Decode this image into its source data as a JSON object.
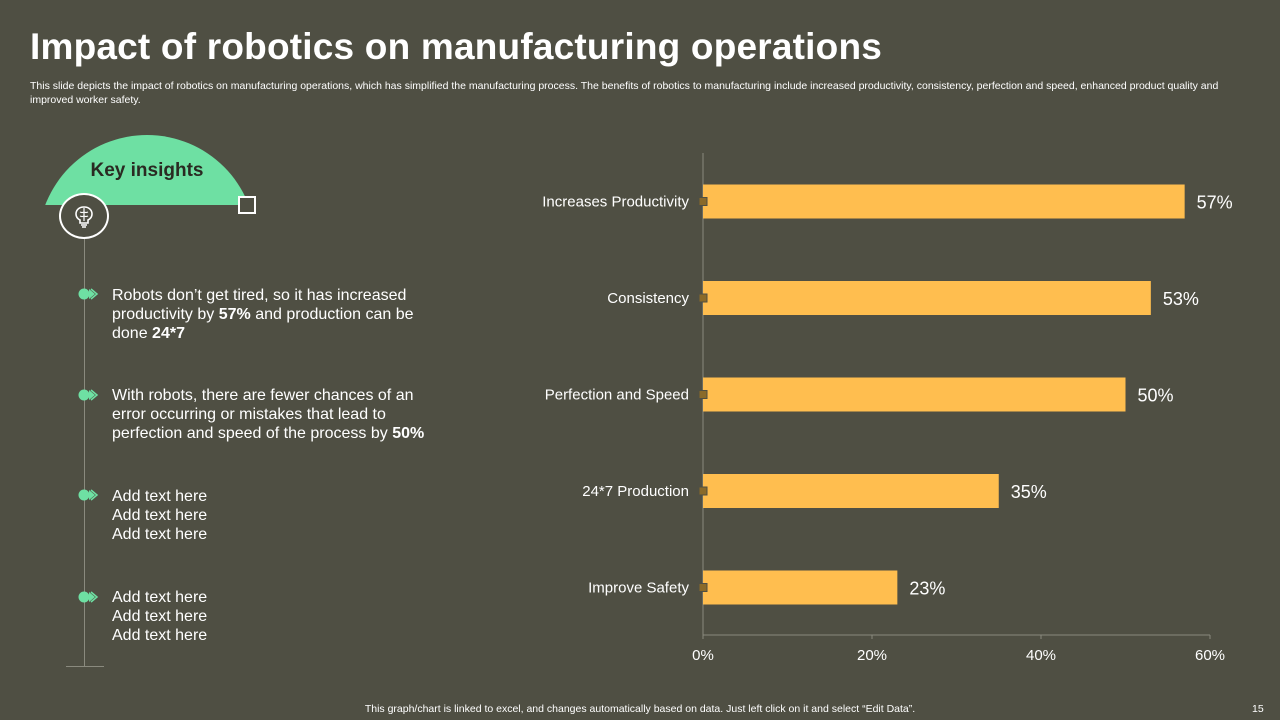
{
  "title": "Impact of robotics on manufacturing operations",
  "subtitle": "This slide depicts the impact of robotics on manufacturing operations, which has simplified the manufacturing process. The benefits of robotics to manufacturing include increased productivity, consistency, perfection and speed, enhanced product quality and improved worker safety.",
  "key_insights": {
    "label": "Key insights",
    "items": [
      {
        "pre": "Robots don’t get tired, so it has increased productivity by ",
        "b1": "57%",
        "mid": " and production can be done ",
        "b2": "24*7",
        "post": ""
      },
      {
        "pre": "With robots, there are fewer chances of an error occurring or mistakes that lead to perfection and speed of the process by ",
        "b1": "50%",
        "mid": "",
        "b2": "",
        "post": ""
      },
      {
        "pre": "Add text here\nAdd text here\nAdd text here"
      },
      {
        "pre": "Add text here\nAdd text here\nAdd text here"
      }
    ]
  },
  "chart_data": {
    "type": "bar",
    "orientation": "horizontal",
    "categories": [
      "Increases Productivity",
      "Consistency",
      "Perfection and Speed",
      "24*7 Production",
      "Improve  Safety"
    ],
    "values": [
      57,
      53,
      50,
      35,
      23
    ],
    "value_labels": [
      "57%",
      "53%",
      "50%",
      "35%",
      "23%"
    ],
    "xlim": [
      0,
      60
    ],
    "x_ticks": [
      "0%",
      "20%",
      "40%",
      "60%"
    ],
    "x_tick_values": [
      0,
      20,
      40,
      60
    ],
    "grid": false,
    "bar_color": "#ffbe4f"
  },
  "footer": "This graph/chart is linked to excel, and changes automatically based on data. Just left click on it and select “Edit Data”.",
  "page_number": "15",
  "colors": {
    "background": "#4f4f43",
    "accent": "#6ee0a3",
    "bar": "#ffbe4f"
  }
}
